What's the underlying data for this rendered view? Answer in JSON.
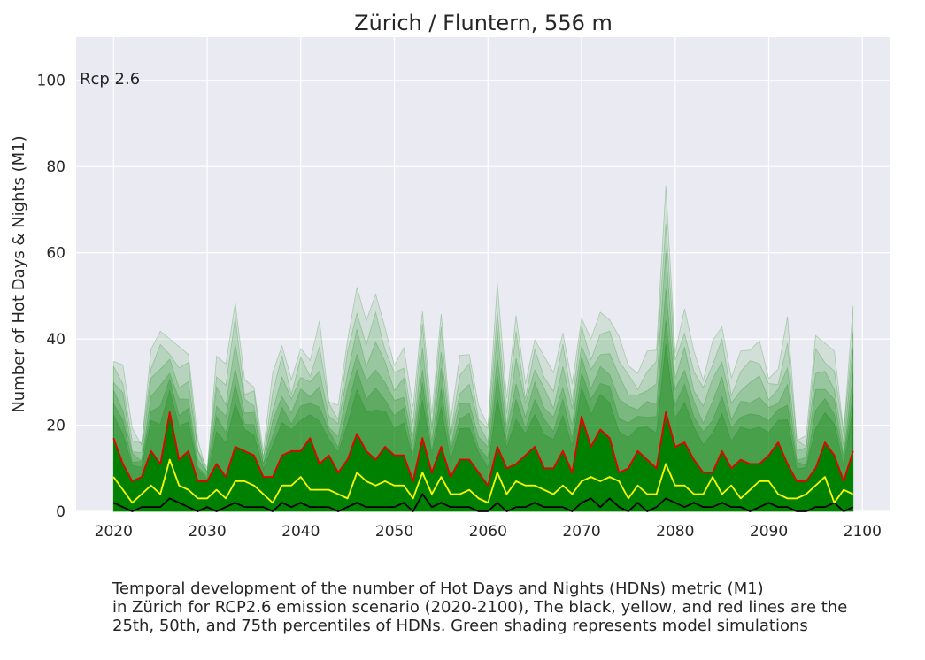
{
  "chart_data": {
    "type": "line",
    "title": "Zürich / Fluntern, 556 m",
    "scenario_label": "Rcp 2.6",
    "xlabel": "",
    "ylabel": "Number of Hot Days & Nights (M1)",
    "xlim": [
      2016,
      2103
    ],
    "ylim": [
      0,
      110
    ],
    "x_ticks": [
      2020,
      2030,
      2040,
      2050,
      2060,
      2070,
      2080,
      2090,
      2100
    ],
    "y_ticks": [
      0,
      20,
      40,
      60,
      80,
      100
    ],
    "grid": true,
    "x": [
      2020,
      2021,
      2022,
      2023,
      2024,
      2025,
      2026,
      2027,
      2028,
      2029,
      2030,
      2031,
      2032,
      2033,
      2034,
      2035,
      2036,
      2037,
      2038,
      2039,
      2040,
      2041,
      2042,
      2043,
      2044,
      2045,
      2046,
      2047,
      2048,
      2049,
      2050,
      2051,
      2052,
      2053,
      2054,
      2055,
      2056,
      2057,
      2058,
      2059,
      2060,
      2061,
      2062,
      2063,
      2064,
      2065,
      2066,
      2067,
      2068,
      2069,
      2070,
      2071,
      2072,
      2073,
      2074,
      2075,
      2076,
      2077,
      2078,
      2079,
      2080,
      2081,
      2082,
      2083,
      2084,
      2085,
      2086,
      2087,
      2088,
      2089,
      2090,
      2091,
      2092,
      2093,
      2094,
      2095,
      2096,
      2097,
      2098,
      2099
    ],
    "series": [
      {
        "name": "75th percentile",
        "color": "#e60000",
        "values": [
          17,
          11,
          7,
          8,
          14,
          11,
          23,
          12,
          14,
          7,
          7,
          11,
          8,
          15,
          14,
          13,
          8,
          8,
          13,
          14,
          14,
          17,
          11,
          13,
          9,
          12,
          18,
          14,
          12,
          15,
          13,
          13,
          7,
          17,
          9,
          15,
          8,
          12,
          12,
          9,
          6,
          15,
          10,
          11,
          13,
          15,
          10,
          10,
          14,
          9,
          22,
          15,
          19,
          17,
          9,
          10,
          14,
          12,
          10,
          23,
          15,
          16,
          12,
          9,
          9,
          14,
          10,
          12,
          11,
          11,
          13,
          16,
          11,
          7,
          7,
          10,
          16,
          13,
          7,
          14
        ]
      },
      {
        "name": "50th percentile",
        "color": "#ffff00",
        "values": [
          8,
          5,
          2,
          4,
          6,
          4,
          12,
          6,
          5,
          3,
          3,
          5,
          3,
          7,
          7,
          6,
          4,
          2,
          6,
          6,
          8,
          5,
          5,
          5,
          4,
          3,
          9,
          7,
          6,
          7,
          6,
          6,
          3,
          9,
          4,
          8,
          4,
          4,
          5,
          3,
          2,
          9,
          4,
          7,
          6,
          6,
          5,
          4,
          6,
          4,
          7,
          8,
          7,
          8,
          7,
          3,
          6,
          4,
          4,
          11,
          6,
          6,
          4,
          4,
          8,
          4,
          6,
          3,
          5,
          7,
          7,
          4,
          3,
          3,
          4,
          6,
          8,
          2,
          5,
          4
        ]
      },
      {
        "name": "25th percentile",
        "color": "#000000",
        "values": [
          2,
          1,
          0,
          1,
          1,
          1,
          3,
          2,
          1,
          0,
          1,
          0,
          1,
          2,
          1,
          1,
          1,
          0,
          2,
          1,
          2,
          1,
          1,
          1,
          0,
          1,
          2,
          1,
          1,
          1,
          1,
          2,
          0,
          4,
          1,
          2,
          1,
          1,
          1,
          0,
          0,
          2,
          0,
          1,
          1,
          2,
          1,
          1,
          1,
          0,
          2,
          3,
          1,
          3,
          1,
          0,
          2,
          0,
          1,
          3,
          2,
          1,
          2,
          1,
          1,
          2,
          1,
          1,
          0,
          1,
          2,
          1,
          1,
          0,
          0,
          1,
          1,
          2,
          0,
          1
        ]
      }
    ],
    "simulations": {
      "name": "model simulations",
      "color": "#008000",
      "max_values": [
        36,
        34,
        18,
        16,
        37,
        43,
        40,
        37,
        37,
        16,
        10,
        36,
        33,
        49,
        30,
        30,
        14,
        31,
        39,
        30,
        39,
        35,
        43,
        26,
        24,
        41,
        52,
        43,
        51,
        42,
        35,
        38,
        23,
        47,
        22,
        47,
        21,
        35,
        37,
        24,
        21,
        53,
        25,
        46,
        29,
        41,
        36,
        31,
        42,
        29,
        46,
        40,
        45,
        45,
        40,
        35,
        32,
        36,
        38,
        75,
        38,
        47,
        36,
        31,
        39,
        44,
        31,
        36,
        38,
        39,
        32,
        33,
        44,
        17,
        17,
        42,
        39,
        36,
        19,
        47
      ]
    }
  },
  "caption": {
    "line1": "Temporal development of the number of Hot Days and Nights (HDNs) metric (M1)",
    "line2": "in Zürich for RCP2.6 emission scenario (2020-2100), The black, yellow, and red lines are the",
    "line3": "25th, 50th, and 75th percentiles of HDNs. Green shading represents model simulations"
  }
}
